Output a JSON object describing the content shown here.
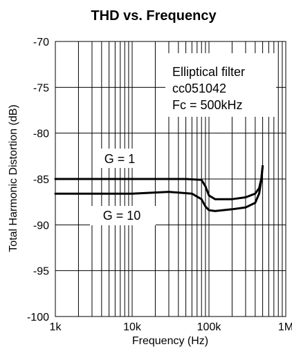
{
  "chart_data": {
    "type": "line",
    "title": "THD vs. Frequency",
    "xlabel": "Frequency (Hz)",
    "ylabel": "Total Harmonic Distortion (dB)",
    "xscale": "log",
    "xlim": [
      1000,
      1000000
    ],
    "ylim": [
      -100,
      -70
    ],
    "grid": true,
    "x_ticks": [
      {
        "value": 1000,
        "label": "1k"
      },
      {
        "value": 10000,
        "label": "10k"
      },
      {
        "value": 100000,
        "label": "100k"
      },
      {
        "value": 1000000,
        "label": "1M"
      }
    ],
    "y_ticks": [
      {
        "value": -70,
        "label": "-70"
      },
      {
        "value": -75,
        "label": "-75"
      },
      {
        "value": -80,
        "label": "-80"
      },
      {
        "value": -85,
        "label": "-85"
      },
      {
        "value": -90,
        "label": "-90"
      },
      {
        "value": -95,
        "label": "-95"
      },
      {
        "value": -100,
        "label": "-100"
      }
    ],
    "annotation_lines": [
      "Elliptical filter",
      "cc051042",
      "Fc = 500kHz"
    ],
    "series": [
      {
        "label": "G = 1",
        "x": [
          1000,
          10000,
          50000,
          80000,
          90000,
          100000,
          120000,
          200000,
          300000,
          400000,
          450000,
          480000,
          500000
        ],
        "y": [
          -85.0,
          -85.0,
          -85.0,
          -85.1,
          -85.8,
          -86.8,
          -87.2,
          -87.2,
          -87.0,
          -86.6,
          -86.0,
          -85.0,
          -83.6
        ]
      },
      {
        "label": "G = 10",
        "x": [
          1000,
          10000,
          30000,
          60000,
          80000,
          90000,
          100000,
          120000,
          200000,
          300000,
          400000,
          450000,
          480000,
          500000
        ],
        "y": [
          -86.6,
          -86.6,
          -86.4,
          -86.6,
          -87.2,
          -88.0,
          -88.4,
          -88.5,
          -88.3,
          -88.1,
          -87.6,
          -86.6,
          -85.2,
          -83.6
        ]
      }
    ]
  }
}
